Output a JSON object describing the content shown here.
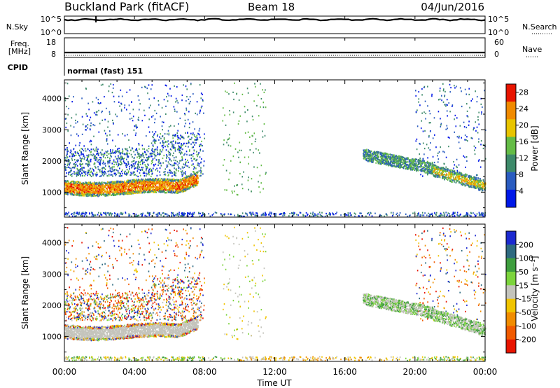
{
  "header": {
    "station": "Buckland Park (fitACF)",
    "beam": "Beam 18",
    "date": "04/Jun/2016"
  },
  "top_panels": {
    "nsky_label": "N.Sky",
    "nsky_ticks": [
      "10^5",
      "10^0"
    ],
    "nsearch_label": "N.Search",
    "nsearch_ticks": [
      "10^5",
      "10^0"
    ],
    "freq_label": "Freq.",
    "freq_unit": "[MHz]",
    "freq_ticks": [
      "18",
      "8"
    ],
    "nave_label": "Nave",
    "nave_ticks": [
      "60",
      "0"
    ],
    "cpid_label": "CPID",
    "cpid_value": "normal (fast) 151"
  },
  "chart_data": [
    {
      "type": "heatmap",
      "name": "power",
      "ylabel": "Slant Range [km]",
      "ylim": [
        200,
        4600
      ],
      "yticks": [
        "1000",
        "2000",
        "3000",
        "4000"
      ],
      "xlim": [
        0,
        24
      ],
      "colorbar_label": "Power [dB]",
      "colorbar_ticks": [
        "4",
        "8",
        "12",
        "16",
        "20",
        "24",
        "28"
      ],
      "colorbar_range": [
        0,
        30
      ],
      "colors": [
        "#0018e8",
        "#2a5cc0",
        "#3d8a6a",
        "#64bc46",
        "#e8c400",
        "#f08a00",
        "#e81400"
      ]
    },
    {
      "type": "heatmap",
      "name": "velocity",
      "ylabel": "Slant Range [km]",
      "ylim": [
        200,
        4600
      ],
      "yticks": [
        "1000",
        "2000",
        "3000",
        "4000"
      ],
      "xlim": [
        0,
        24
      ],
      "xlabel": "Time UT",
      "xticks": [
        "00:00",
        "04:00",
        "08:00",
        "12:00",
        "16:00",
        "20:00",
        "00:00"
      ],
      "colorbar_label": "Velocity [m s⁻¹]",
      "colorbar_ticks": [
        "200",
        "100",
        "50",
        "15",
        "-15",
        "-50",
        "-100",
        "-200"
      ],
      "colors": [
        "#1c2ad0",
        "#2e6a80",
        "#3e9e3e",
        "#7cd43c",
        "#c4c4bc",
        "#f0c400",
        "#f08c00",
        "#f05a00",
        "#e81400"
      ]
    }
  ]
}
